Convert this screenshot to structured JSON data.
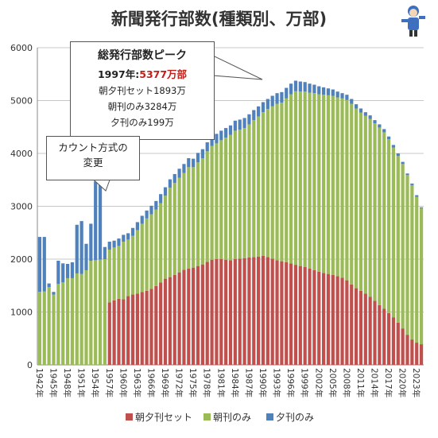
{
  "title": "新聞発行部数(種類別、万部)",
  "peak_note": {
    "line1": "総発行部数ピーク",
    "line2_year": "1997年:",
    "line2_value": "5377万部",
    "line3": "朝夕刊セット1893万",
    "line4": "朝刊のみ3284万",
    "line5": "夕刊のみ199万"
  },
  "count_note": {
    "line1": "カウント方式の",
    "line2": "変更"
  },
  "icons": {
    "mascot": "mascot-icon"
  },
  "chart_data": {
    "type": "bar",
    "stacked": true,
    "title": "新聞発行部数(種類別、万部)",
    "ylim": [
      0,
      6000
    ],
    "yticks": [
      0,
      1000,
      2000,
      3000,
      4000,
      5000,
      6000
    ],
    "grid": true,
    "legend_position": "bottom",
    "x_tick_labels": [
      "1942年",
      "1945年",
      "1948年",
      "1951年",
      "1954年",
      "1957年",
      "1960年",
      "1963年",
      "1966年",
      "1969年",
      "1972年",
      "1975年",
      "1978年",
      "1981年",
      "1984年",
      "1987年",
      "1990年",
      "1993年",
      "1996年",
      "1999年",
      "2002年",
      "2005年",
      "2008年",
      "2011年",
      "2014年",
      "2017年",
      "2020年",
      "2023年"
    ],
    "x": [
      1942,
      1943,
      1944,
      1945,
      1946,
      1947,
      1948,
      1949,
      1950,
      1951,
      1952,
      1953,
      1954,
      1955,
      1956,
      1957,
      1958,
      1959,
      1960,
      1961,
      1962,
      1963,
      1964,
      1965,
      1966,
      1967,
      1968,
      1969,
      1970,
      1971,
      1972,
      1973,
      1974,
      1975,
      1976,
      1977,
      1978,
      1979,
      1980,
      1981,
      1982,
      1983,
      1984,
      1985,
      1986,
      1987,
      1988,
      1989,
      1990,
      1991,
      1992,
      1993,
      1994,
      1995,
      1996,
      1997,
      1998,
      1999,
      2000,
      2001,
      2002,
      2003,
      2004,
      2005,
      2006,
      2007,
      2008,
      2009,
      2010,
      2011,
      2012,
      2013,
      2014,
      2015,
      2016,
      2017,
      2018,
      2019,
      2020,
      2021,
      2022,
      2023,
      2024
    ],
    "series": [
      {
        "name": "朝夕刊セット",
        "color": "#c0504d",
        "values": [
          0,
          0,
          0,
          0,
          0,
          0,
          0,
          0,
          0,
          0,
          0,
          0,
          0,
          0,
          0,
          1180,
          1220,
          1250,
          1240,
          1300,
          1330,
          1350,
          1380,
          1400,
          1440,
          1490,
          1560,
          1630,
          1660,
          1700,
          1750,
          1800,
          1820,
          1840,
          1870,
          1900,
          1950,
          1990,
          2000,
          2000,
          1990,
          1980,
          2000,
          2010,
          2020,
          2030,
          2040,
          2050,
          2060,
          2040,
          2010,
          1980,
          1960,
          1940,
          1920,
          1893,
          1870,
          1850,
          1820,
          1790,
          1760,
          1740,
          1720,
          1700,
          1680,
          1650,
          1600,
          1520,
          1450,
          1400,
          1350,
          1290,
          1210,
          1130,
          1060,
          980,
          900,
          800,
          690,
          570,
          480,
          420,
          390
        ]
      },
      {
        "name": "朝刊のみ",
        "color": "#9bbb59",
        "values": [
          1380,
          1390,
          1470,
          1330,
          1530,
          1560,
          1640,
          1640,
          1730,
          1720,
          1790,
          1970,
          1980,
          1990,
          2000,
          1000,
          1000,
          1000,
          1090,
          1070,
          1110,
          1200,
          1290,
          1370,
          1410,
          1450,
          1500,
          1570,
          1690,
          1740,
          1790,
          1830,
          1920,
          1900,
          1960,
          2010,
          2090,
          2150,
          2190,
          2250,
          2310,
          2370,
          2430,
          2440,
          2460,
          2520,
          2590,
          2650,
          2720,
          2800,
          2880,
          2960,
          3000,
          3100,
          3200,
          3284,
          3300,
          3320,
          3330,
          3350,
          3360,
          3370,
          3380,
          3390,
          3380,
          3390,
          3410,
          3420,
          3400,
          3370,
          3360,
          3360,
          3360,
          3360,
          3340,
          3290,
          3210,
          3150,
          3110,
          3020,
          2920,
          2760,
          2570
        ]
      },
      {
        "name": "夕刊のみ",
        "color": "#4f81bd",
        "values": [
          1040,
          1030,
          70,
          50,
          440,
          360,
          270,
          300,
          920,
          1000,
          500,
          700,
          1490,
          1420,
          230,
          150,
          130,
          140,
          130,
          120,
          150,
          150,
          150,
          150,
          160,
          160,
          170,
          160,
          160,
          170,
          170,
          170,
          170,
          160,
          180,
          170,
          170,
          180,
          180,
          180,
          180,
          180,
          190,
          190,
          190,
          190,
          190,
          190,
          190,
          190,
          200,
          200,
          200,
          200,
          200,
          199,
          190,
          180,
          170,
          160,
          150,
          140,
          130,
          120,
          110,
          100,
          100,
          90,
          80,
          80,
          70,
          70,
          60,
          60,
          60,
          50,
          50,
          50,
          40,
          30,
          30,
          30,
          20
        ]
      }
    ]
  }
}
